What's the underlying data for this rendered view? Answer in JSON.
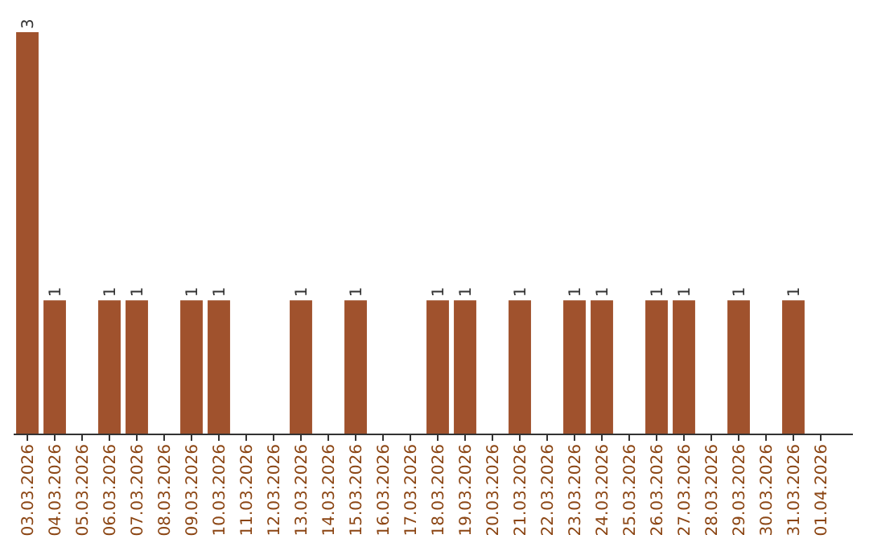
{
  "chart_data": {
    "type": "bar",
    "categories": [
      "03.03.2026",
      "04.03.2026",
      "05.03.2026",
      "06.03.2026",
      "07.03.2026",
      "08.03.2026",
      "09.03.2026",
      "10.03.2026",
      "11.03.2026",
      "12.03.2026",
      "13.03.2026",
      "14.03.2026",
      "15.03.2026",
      "16.03.2026",
      "17.03.2026",
      "18.03.2026",
      "19.03.2026",
      "20.03.2026",
      "21.03.2026",
      "22.03.2026",
      "23.03.2026",
      "24.03.2026",
      "25.03.2026",
      "26.03.2026",
      "27.03.2026",
      "28.03.2026",
      "29.03.2026",
      "30.03.2026",
      "31.03.2026",
      "01.04.2026"
    ],
    "values": [
      3,
      1,
      0,
      1,
      1,
      0,
      1,
      1,
      0,
      0,
      1,
      0,
      1,
      0,
      0,
      1,
      1,
      0,
      1,
      0,
      1,
      1,
      0,
      1,
      1,
      0,
      1,
      0,
      1,
      0
    ],
    "value_labels": [
      "3",
      "1",
      null,
      "1",
      "1",
      null,
      "1",
      "1",
      null,
      null,
      "1",
      null,
      "1",
      null,
      null,
      "1",
      "1",
      null,
      "1",
      null,
      "1",
      "1",
      null,
      "1",
      "1",
      null,
      "1",
      null,
      "1",
      null
    ],
    "color": "#a0522d"
  }
}
